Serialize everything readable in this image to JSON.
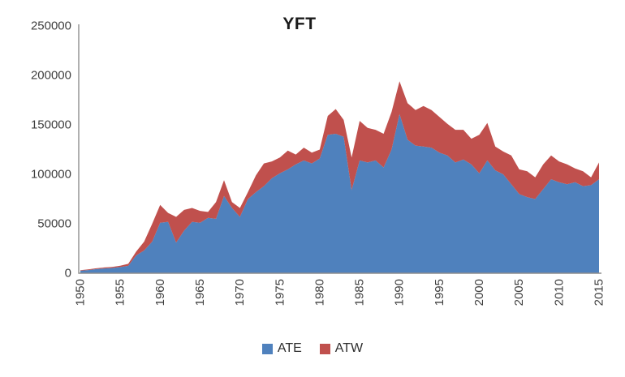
{
  "title": "YFT",
  "axis_color": "#8e8e8e",
  "chart_data": {
    "type": "area",
    "stacked": true,
    "title": "YFT",
    "xlabel": "",
    "ylabel": "",
    "ylim": [
      0,
      250000
    ],
    "y_ticks": [
      0,
      50000,
      100000,
      150000,
      200000,
      250000
    ],
    "x_ticks": [
      1950,
      1955,
      1960,
      1965,
      1970,
      1975,
      1980,
      1985,
      1990,
      1995,
      2000,
      2005,
      2010,
      2015
    ],
    "grid": false,
    "legend_position": "bottom",
    "x": [
      1950,
      1951,
      1952,
      1953,
      1954,
      1955,
      1956,
      1957,
      1958,
      1959,
      1960,
      1961,
      1962,
      1963,
      1964,
      1965,
      1966,
      1967,
      1968,
      1969,
      1970,
      1971,
      1972,
      1973,
      1974,
      1975,
      1976,
      1977,
      1978,
      1979,
      1980,
      1981,
      1982,
      1983,
      1984,
      1985,
      1986,
      1987,
      1988,
      1989,
      1990,
      1991,
      1992,
      1993,
      1994,
      1995,
      1996,
      1997,
      1998,
      1999,
      2000,
      2001,
      2002,
      2003,
      2004,
      2005,
      2006,
      2007,
      2008,
      2009,
      2010,
      2011,
      2012,
      2013,
      2014,
      2015
    ],
    "series": [
      {
        "name": "ATE",
        "color": "#4f81bd",
        "values": [
          2500,
          3200,
          4200,
          4800,
          5300,
          6200,
          7500,
          18000,
          23000,
          32000,
          51000,
          52000,
          31000,
          43000,
          52000,
          51000,
          56000,
          55000,
          78000,
          66000,
          57000,
          75000,
          82000,
          88000,
          96000,
          101000,
          105000,
          110000,
          114000,
          111000,
          116000,
          140000,
          141000,
          138000,
          84000,
          114000,
          112000,
          114000,
          107000,
          125000,
          161000,
          135000,
          129000,
          128000,
          127000,
          122000,
          119000,
          112000,
          115000,
          110000,
          101000,
          114000,
          104000,
          100000,
          90000,
          80000,
          77000,
          75000,
          85000,
          95000,
          92000,
          90000,
          92000,
          88000,
          89000,
          95000
        ]
      },
      {
        "name": "ATW",
        "color": "#c0504d",
        "values": [
          500,
          700,
          800,
          1000,
          1100,
          1400,
          2000,
          4000,
          9000,
          18000,
          18000,
          9000,
          26000,
          21000,
          14000,
          12000,
          6000,
          17000,
          16000,
          6000,
          9000,
          7000,
          17000,
          23000,
          17000,
          16000,
          19000,
          10000,
          13000,
          11000,
          9000,
          19000,
          25000,
          17000,
          33000,
          40000,
          35000,
          31000,
          34000,
          38000,
          33000,
          37000,
          36000,
          41000,
          38000,
          36000,
          32000,
          33000,
          30000,
          26000,
          39000,
          38000,
          24000,
          23000,
          29000,
          25000,
          26000,
          22000,
          25000,
          24000,
          21000,
          20000,
          14000,
          15000,
          8000,
          17000
        ]
      }
    ]
  }
}
